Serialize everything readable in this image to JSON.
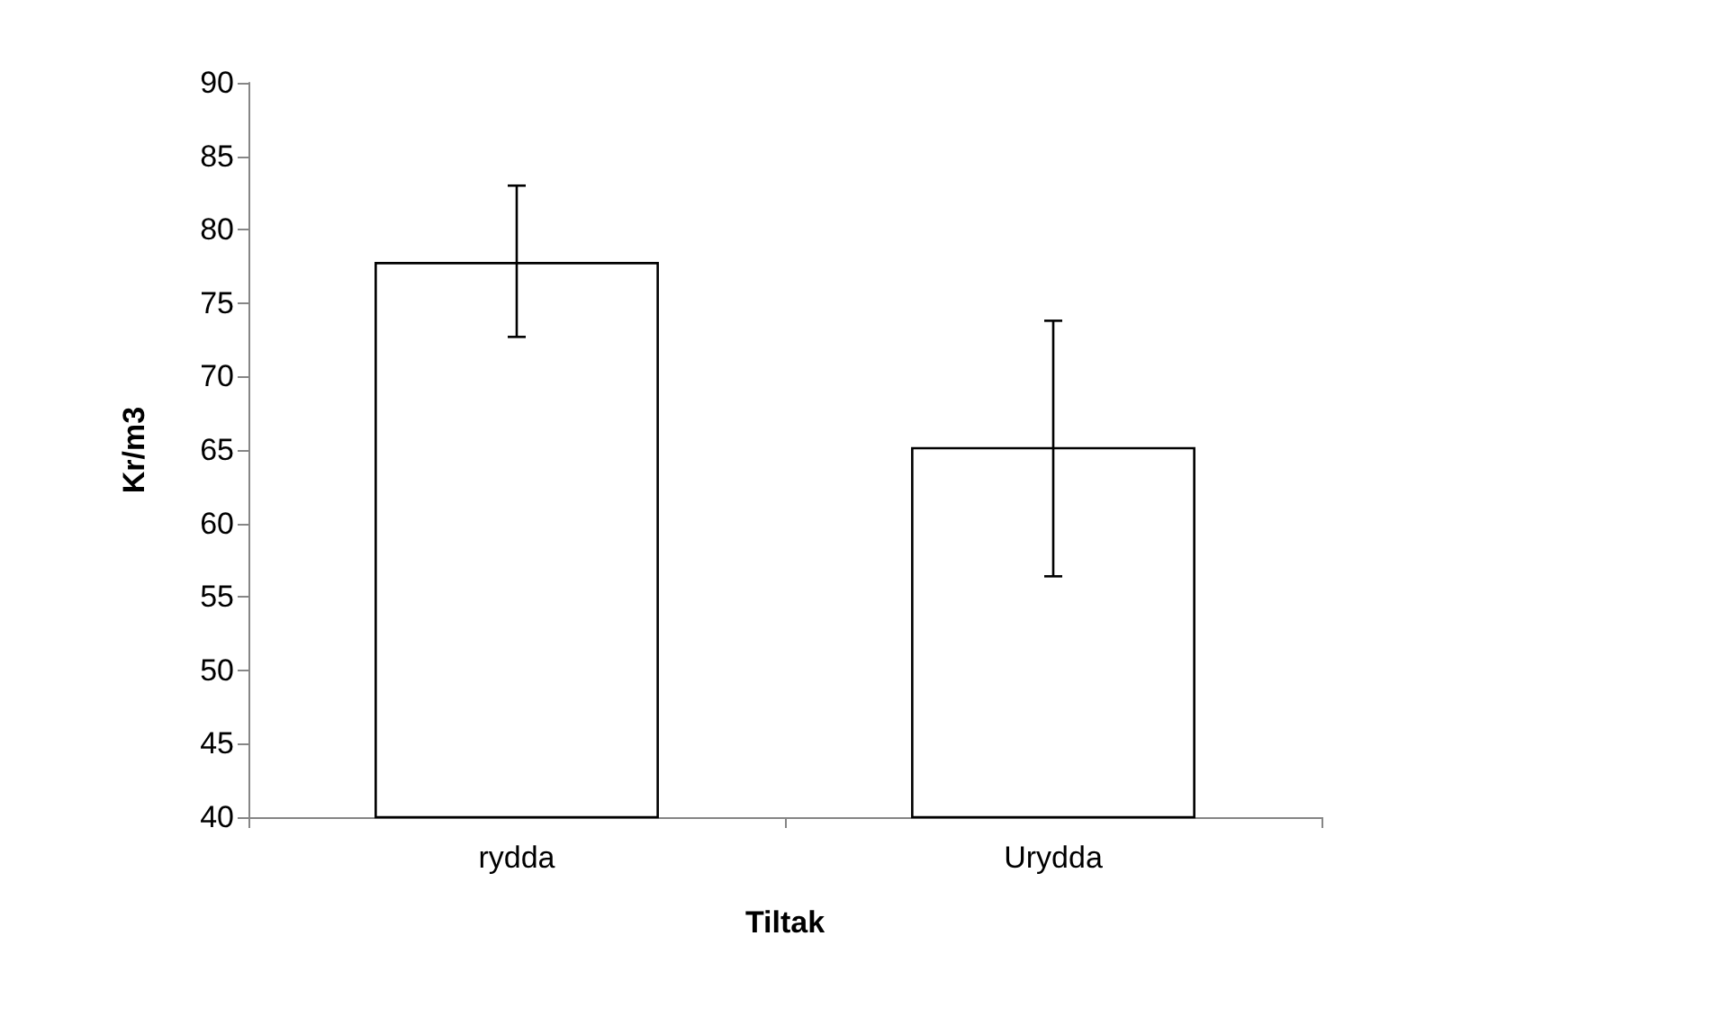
{
  "chart_data": {
    "type": "bar",
    "xlabel": "Tiltak",
    "ylabel": "Kr/m3",
    "categories": [
      "rydda",
      "Urydda"
    ],
    "values": [
      77.8,
      65.2
    ],
    "color": "#ffffff",
    "errors": [
      [
        72.7,
        83.0
      ],
      [
        56.4,
        73.8
      ]
    ],
    "ylim": [
      40,
      90
    ],
    "yticks": [
      40,
      45,
      50,
      55,
      60,
      65,
      70,
      75,
      80,
      85,
      90
    ],
    "grid": false
  }
}
